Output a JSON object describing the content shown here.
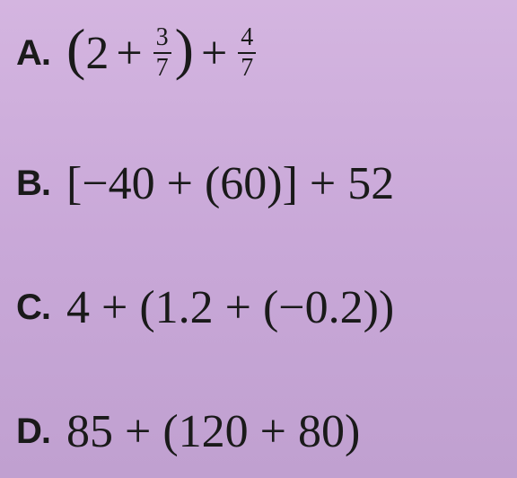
{
  "options": {
    "a": {
      "letter": "A.",
      "whole": "2",
      "plus1": "+",
      "frac1_num": "3",
      "frac1_den": "7",
      "plus2": "+",
      "frac2_num": "4",
      "frac2_den": "7"
    },
    "b": {
      "letter": "B.",
      "expression": "[−40 + (60)] + 52"
    },
    "c": {
      "letter": "C.",
      "expression": "4 + (1.2 + (−0.2))"
    },
    "d": {
      "letter": "D.",
      "expression": "85 + (120 + 80)"
    }
  },
  "style": {
    "background_colors": [
      "#d4b5e0",
      "#c9a8d8",
      "#c0a0d0"
    ],
    "text_color": "#1a1a1a",
    "letter_font": "Arial",
    "letter_fontsize": 40,
    "letter_weight": 900,
    "expression_font": "Times New Roman",
    "expression_fontsize": 52,
    "fraction_fontsize": 28,
    "fraction_bar_width": 2.5,
    "big_paren_fontsize": 64
  }
}
